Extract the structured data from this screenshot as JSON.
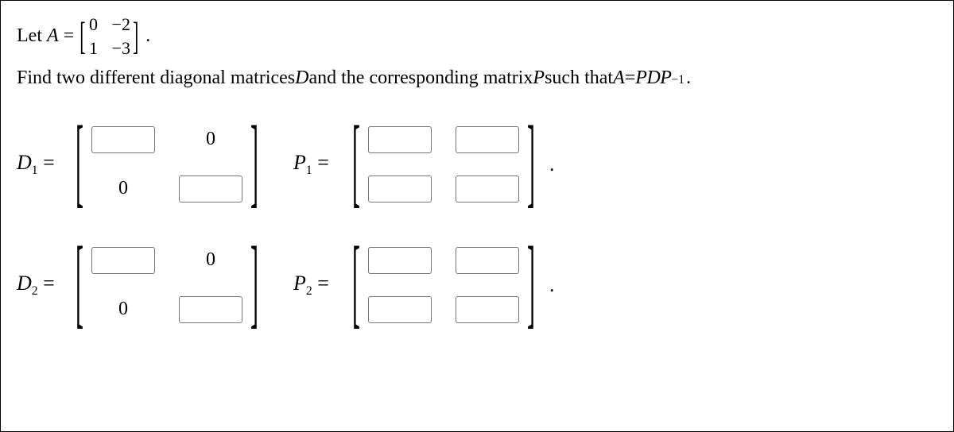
{
  "prompt": {
    "line1_pre": "Let ",
    "A": "A",
    "eq": " = ",
    "matrixA": {
      "r0c0": "0",
      "r0c1": "−2",
      "r1c0": "1",
      "r1c1": "−3"
    },
    "line1_post": ".",
    "line2_a": "Find two different diagonal matrices ",
    "D": "D",
    "line2_b": " and the corresponding matrix ",
    "P": "P",
    "line2_c": " such that ",
    "A2": "A",
    "eq2": " = ",
    "P2": "P",
    "D2": "D",
    "P3": "P",
    "exp": "−1",
    "line2_end": "."
  },
  "labels": {
    "D1": "D",
    "D1sub": "1",
    "D2": "D",
    "D2sub": "2",
    "P1": "P",
    "P1sub": "1",
    "P2": "P",
    "P2sub": "2",
    "equals": " ="
  },
  "fixed": {
    "zero": "0"
  },
  "brackets": {
    "left": "[",
    "right": "]"
  },
  "dot": "."
}
